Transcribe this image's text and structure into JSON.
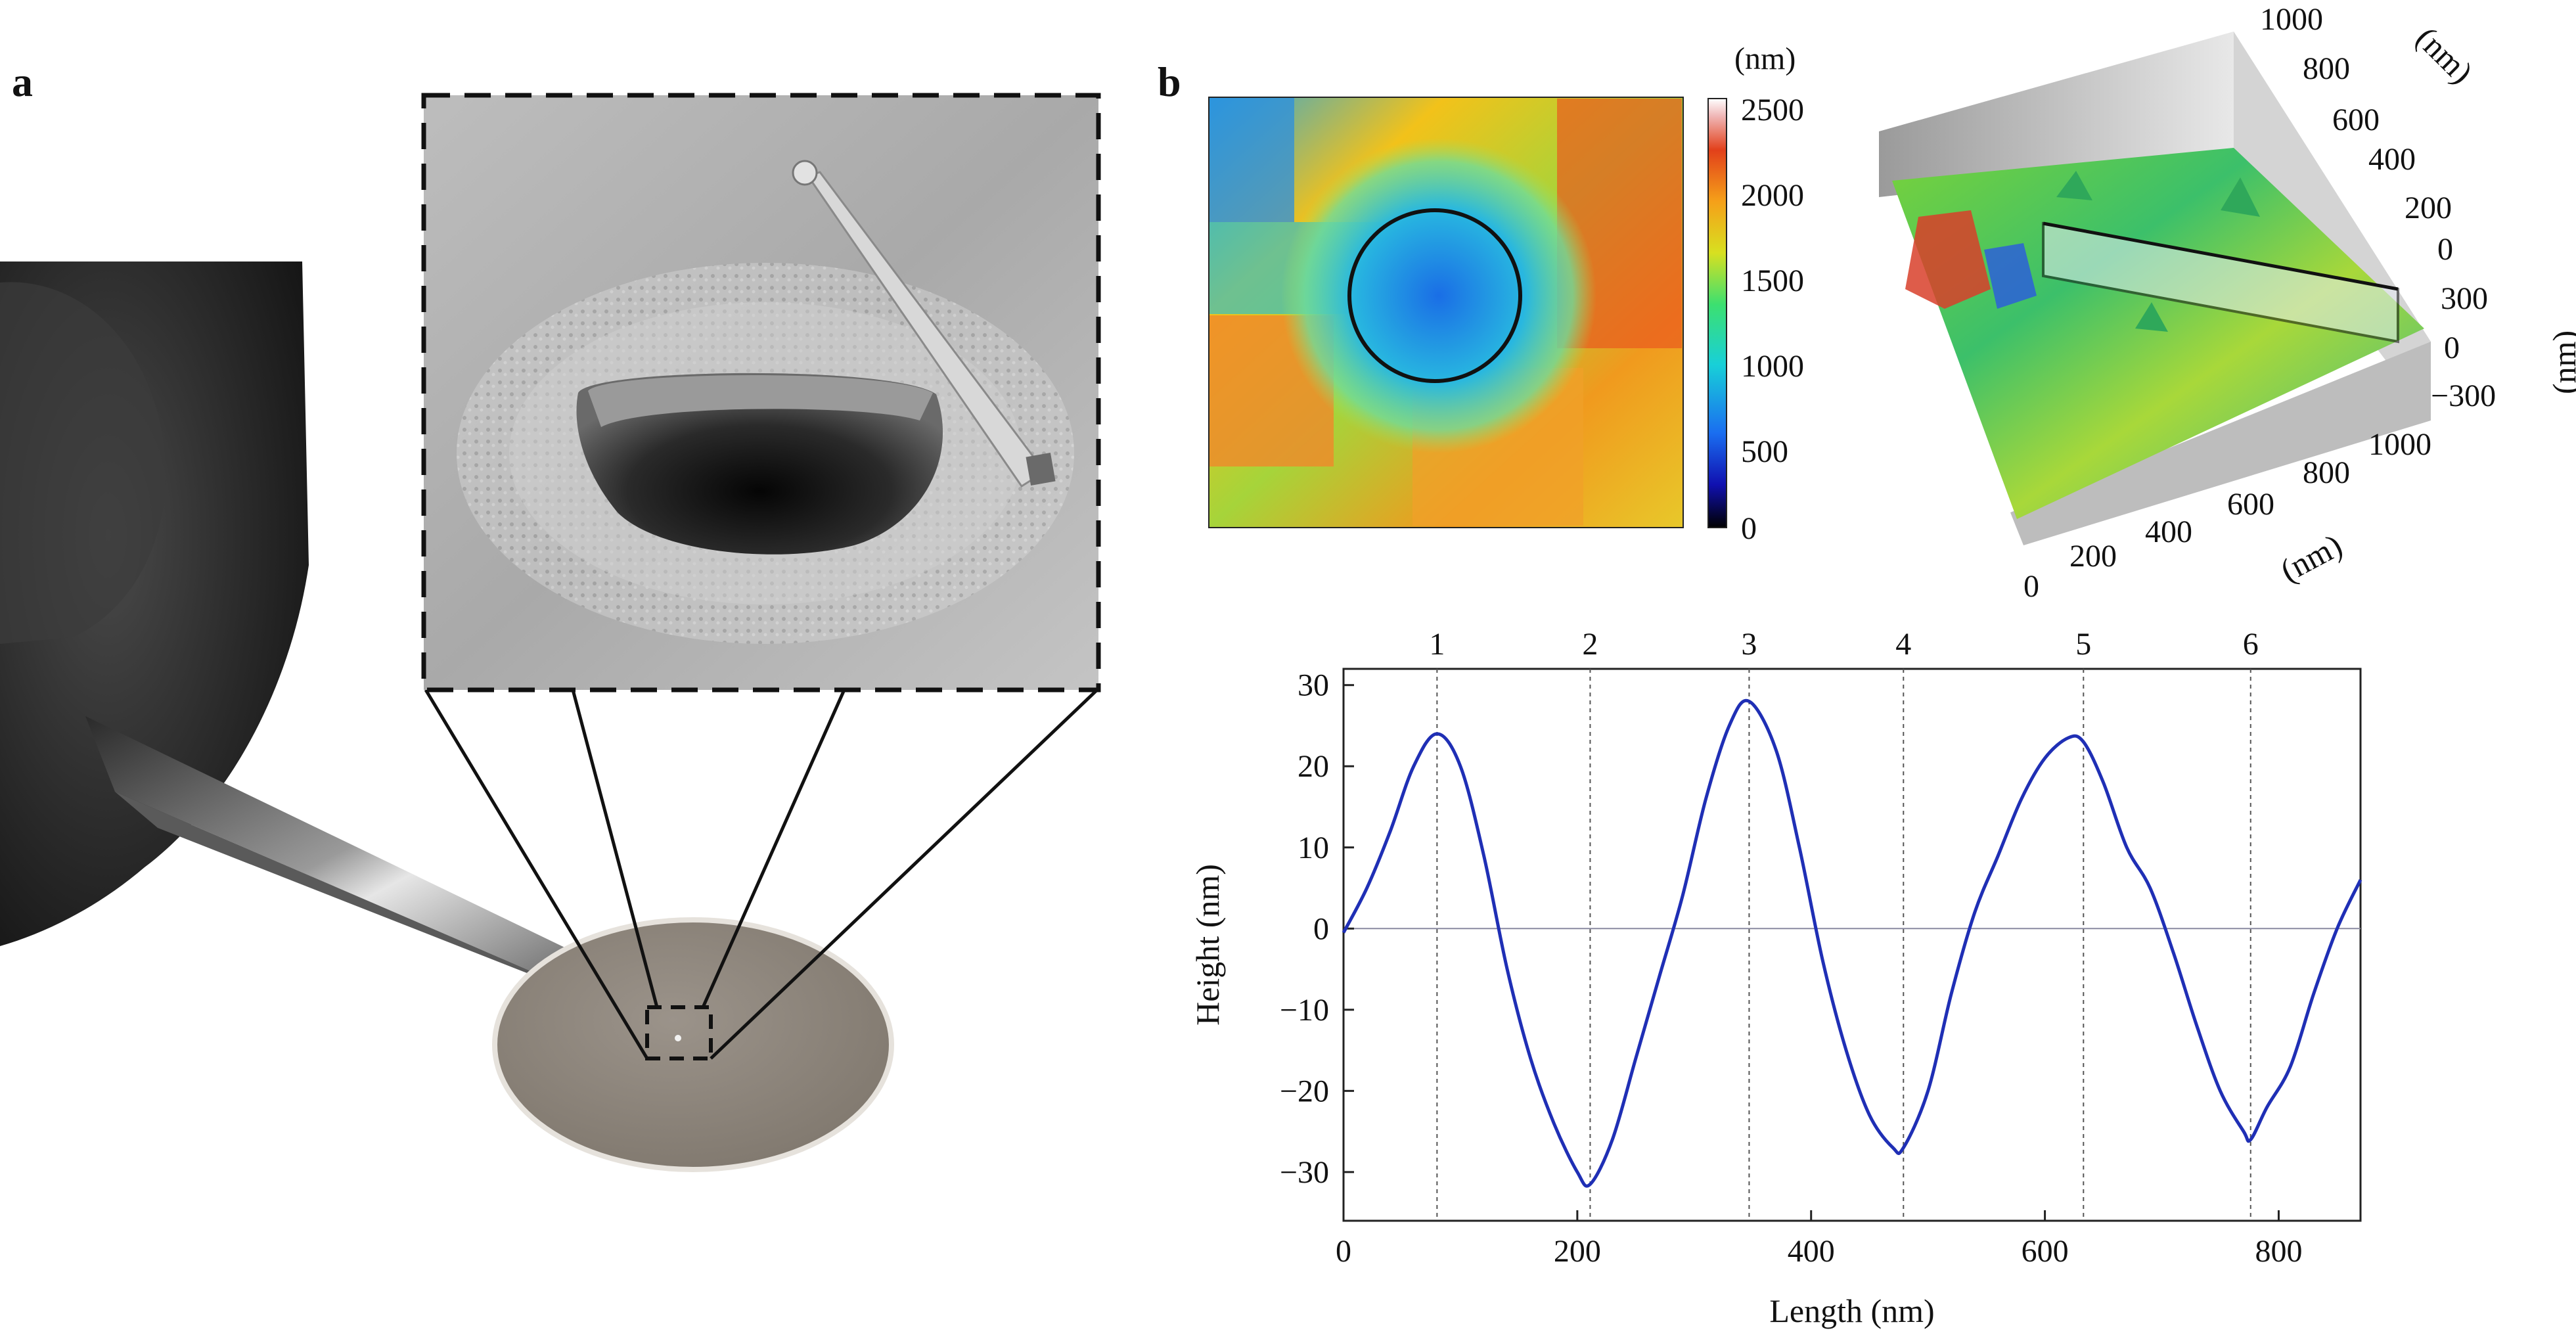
{
  "panels": {
    "a": "a",
    "b": "b"
  },
  "colorbar": {
    "unit": "(nm)",
    "ticks": [
      "2500",
      "2000",
      "1500",
      "1000",
      "500",
      "0"
    ]
  },
  "surface3d": {
    "y_axis_unit": "(nm)",
    "y_ticks": [
      "1000",
      "800",
      "600",
      "400",
      "200",
      "0"
    ],
    "z_axis_unit": "(nm)",
    "z_ticks": [
      "300",
      "0",
      "−300"
    ],
    "x_axis_unit": "(nm)",
    "x_ticks": [
      "0",
      "200",
      "400",
      "600",
      "800",
      "1000"
    ]
  },
  "colors": {
    "profile_line": "#1f2fb5",
    "zero_line": "#8a8aa0",
    "marker_line": "#555555"
  },
  "chart_data": {
    "type": "line",
    "title": "",
    "xlabel": "Length (nm)",
    "ylabel": "Height (nm)",
    "xlim": [
      0,
      870
    ],
    "ylim": [
      -36,
      32
    ],
    "x_ticks": [
      0,
      200,
      400,
      600,
      800
    ],
    "y_ticks": [
      30,
      20,
      10,
      0,
      -10,
      -20,
      -30
    ],
    "grid": false,
    "markers": [
      {
        "label": "1",
        "x": 80
      },
      {
        "label": "2",
        "x": 211
      },
      {
        "label": "3",
        "x": 347
      },
      {
        "label": "4",
        "x": 479
      },
      {
        "label": "5",
        "x": 633
      },
      {
        "label": "6",
        "x": 776
      }
    ],
    "series": [
      {
        "x": [
          0,
          20,
          40,
          60,
          80,
          100,
          120,
          140,
          160,
          180,
          200,
          211,
          230,
          250,
          270,
          290,
          310,
          330,
          347,
          370,
          390,
          410,
          430,
          450,
          470,
          479,
          500,
          520,
          540,
          560,
          580,
          600,
          620,
          633,
          650,
          670,
          690,
          710,
          730,
          750,
          770,
          776,
          790,
          810,
          830,
          850,
          870
        ],
        "y": [
          -0.5,
          5,
          12,
          20,
          24,
          20,
          9,
          -5,
          -16,
          -24,
          -30,
          -31.5,
          -26,
          -16,
          -6,
          4,
          16,
          25,
          28,
          22,
          10,
          -4,
          -15,
          -23,
          -27,
          -27,
          -20,
          -8,
          2,
          9,
          16,
          21,
          23.5,
          23,
          18,
          10,
          5,
          -3,
          -12,
          -20,
          -25,
          -26,
          -22,
          -17,
          -8,
          0,
          6
        ]
      }
    ]
  }
}
